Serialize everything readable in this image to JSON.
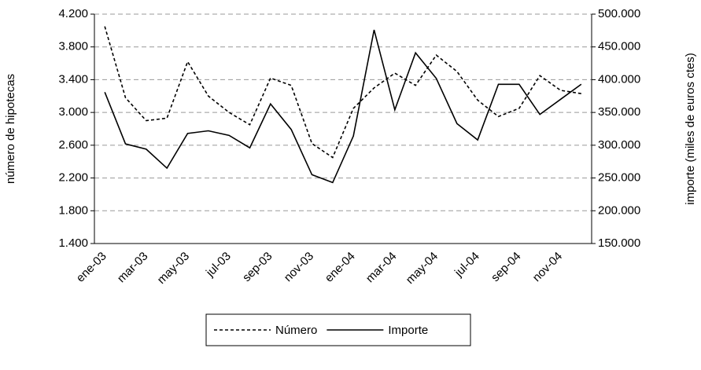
{
  "chart_data": {
    "type": "line",
    "categories": [
      "ene-03",
      null,
      "mar-03",
      null,
      "may-03",
      null,
      "jul-03",
      null,
      "sep-03",
      null,
      "nov-03",
      null,
      "ene-04",
      null,
      "mar-04",
      null,
      "may-04",
      null,
      "jul-04",
      null,
      "sep-04",
      null,
      "nov-04",
      null
    ],
    "series": [
      {
        "name": "Número",
        "color": "#000000",
        "line_style": "dashed",
        "axis": "y",
        "values": [
          4050,
          3180,
          2900,
          2930,
          3620,
          3200,
          3000,
          2850,
          3420,
          3330,
          2620,
          2450,
          3050,
          3300,
          3480,
          3330,
          3700,
          3500,
          3150,
          2950,
          3050,
          3450,
          3270,
          3230
        ]
      },
      {
        "name": "Importe",
        "color": "#000000",
        "line_style": "solid",
        "axis": "y2",
        "values": [
          381000,
          302000,
          294000,
          265000,
          318000,
          322000,
          315000,
          296000,
          363000,
          324000,
          255000,
          243000,
          314000,
          476000,
          354000,
          441000,
          402000,
          333000,
          308000,
          393000,
          393000,
          347000,
          370000,
          393000
        ]
      }
    ],
    "ylabel": "número de hipotecas",
    "y2label": "importe (miles de euros ctes)",
    "ylim": [
      1400,
      4200
    ],
    "yticks": [
      {
        "value": 1400,
        "label": "1.400"
      },
      {
        "value": 1800,
        "label": "1.800"
      },
      {
        "value": 2200,
        "label": "2.200"
      },
      {
        "value": 2600,
        "label": "2.600"
      },
      {
        "value": 3000,
        "label": "3.000"
      },
      {
        "value": 3400,
        "label": "3.400"
      },
      {
        "value": 3800,
        "label": "3.800"
      },
      {
        "value": 4200,
        "label": "4.200"
      }
    ],
    "y2lim": [
      150000,
      500000
    ],
    "y2ticks": [
      {
        "value": 150000,
        "label": "150.000"
      },
      {
        "value": 200000,
        "label": "200.000"
      },
      {
        "value": 250000,
        "label": "250.000"
      },
      {
        "value": 300000,
        "label": "300.000"
      },
      {
        "value": 350000,
        "label": "350.000"
      },
      {
        "value": 400000,
        "label": "400.000"
      },
      {
        "value": 450000,
        "label": "450.000"
      },
      {
        "value": 500000,
        "label": "500.000"
      }
    ],
    "grid": true,
    "legend": "bottom"
  }
}
